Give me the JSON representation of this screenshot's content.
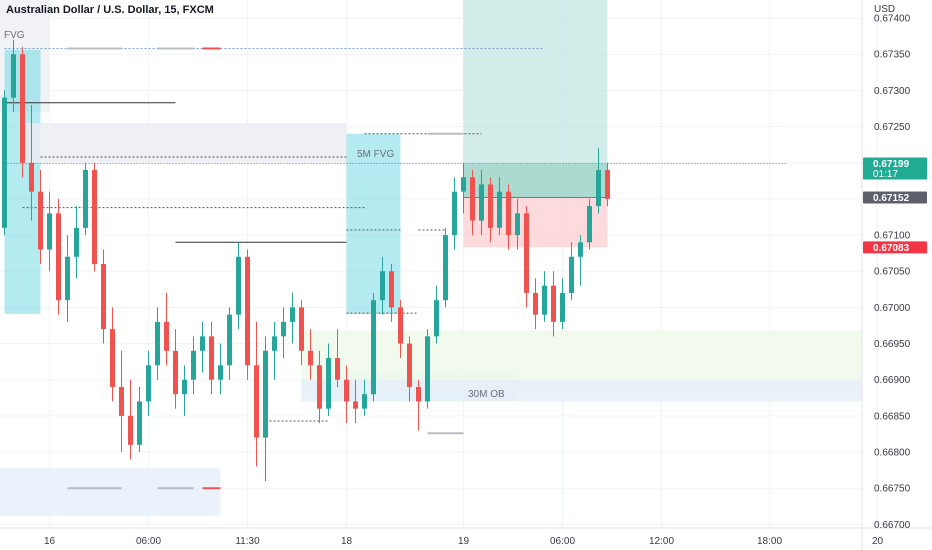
{
  "header": {
    "title": "Australian Dollar / U.S. Dollar, 15, FXCM",
    "currency": "USD"
  },
  "chart_data": {
    "type": "candlestick",
    "symbol": "AUDUSD",
    "timeframe": "15",
    "source": "FXCM",
    "y_range": [
      0.66695,
      0.67425
    ],
    "y_ticks": [
      0.674,
      0.6735,
      0.673,
      0.6725,
      0.672,
      0.6715,
      0.671,
      0.6705,
      0.67,
      0.6695,
      0.669,
      0.6685,
      0.668,
      0.6675,
      0.667
    ],
    "y_tick_labels": [
      "0.67400",
      "0.67350",
      "0.67300",
      "0.67250",
      "0.67200",
      "0.67150",
      "0.67100",
      "0.67050",
      "0.67000",
      "0.66950",
      "0.66900",
      "0.66850",
      "0.66800",
      "0.66750",
      "0.66700"
    ],
    "x_ticks": [
      {
        "label": "16",
        "bar": 5
      },
      {
        "label": "06:00",
        "bar": 16
      },
      {
        "label": "11:30",
        "bar": 27
      },
      {
        "label": "18",
        "bar": 38
      },
      {
        "label": "19",
        "bar": 51
      },
      {
        "label": "06:00",
        "bar": 62
      },
      {
        "label": "12:00",
        "bar": 73
      },
      {
        "label": "18:00",
        "bar": 85
      },
      {
        "label": "20",
        "bar": 97
      }
    ],
    "bar_count_visible": 100,
    "candles": [
      [
        0.6711,
        0.673,
        0.671,
        0.6729
      ],
      [
        0.6729,
        0.6737,
        0.6727,
        0.6735
      ],
      [
        0.6735,
        0.6736,
        0.6718,
        0.672
      ],
      [
        0.672,
        0.6728,
        0.6712,
        0.6716
      ],
      [
        0.6716,
        0.6719,
        0.6706,
        0.6708
      ],
      [
        0.6708,
        0.6716,
        0.6705,
        0.6713
      ],
      [
        0.6713,
        0.6715,
        0.6699,
        0.6701
      ],
      [
        0.6701,
        0.671,
        0.6698,
        0.6707
      ],
      [
        0.6707,
        0.6714,
        0.6704,
        0.6711
      ],
      [
        0.6711,
        0.672,
        0.671,
        0.6719
      ],
      [
        0.6719,
        0.672,
        0.6705,
        0.6706
      ],
      [
        0.6706,
        0.6708,
        0.6695,
        0.6697
      ],
      [
        0.6697,
        0.67,
        0.6687,
        0.6689
      ],
      [
        0.6689,
        0.6694,
        0.668,
        0.6685
      ],
      [
        0.6685,
        0.669,
        0.6679,
        0.6681
      ],
      [
        0.6681,
        0.6689,
        0.668,
        0.6687
      ],
      [
        0.6687,
        0.6694,
        0.6685,
        0.6692
      ],
      [
        0.6692,
        0.67,
        0.669,
        0.6698
      ],
      [
        0.6698,
        0.6702,
        0.6692,
        0.6694
      ],
      [
        0.6694,
        0.6697,
        0.6686,
        0.6688
      ],
      [
        0.6688,
        0.6692,
        0.6685,
        0.669
      ],
      [
        0.669,
        0.6696,
        0.6688,
        0.6694
      ],
      [
        0.6694,
        0.6698,
        0.6691,
        0.6696
      ],
      [
        0.6696,
        0.6698,
        0.6688,
        0.669
      ],
      [
        0.669,
        0.6695,
        0.6688,
        0.6692
      ],
      [
        0.6692,
        0.67,
        0.669,
        0.6699
      ],
      [
        0.6699,
        0.6709,
        0.6697,
        0.6707
      ],
      [
        0.6707,
        0.6708,
        0.669,
        0.6692
      ],
      [
        0.6692,
        0.6698,
        0.6678,
        0.6682
      ],
      [
        0.6682,
        0.6696,
        0.6676,
        0.6694
      ],
      [
        0.6694,
        0.6698,
        0.669,
        0.6696
      ],
      [
        0.6696,
        0.67,
        0.6693,
        0.6698
      ],
      [
        0.6698,
        0.6702,
        0.6695,
        0.67
      ],
      [
        0.67,
        0.6701,
        0.6692,
        0.6694
      ],
      [
        0.6694,
        0.6697,
        0.669,
        0.6692
      ],
      [
        0.6692,
        0.6694,
        0.6684,
        0.6686
      ],
      [
        0.6686,
        0.6695,
        0.6685,
        0.6693
      ],
      [
        0.6693,
        0.6697,
        0.6689,
        0.669
      ],
      [
        0.669,
        0.6692,
        0.6684,
        0.6687
      ],
      [
        0.6687,
        0.669,
        0.6684,
        0.6686
      ],
      [
        0.6686,
        0.669,
        0.6685,
        0.6688
      ],
      [
        0.6688,
        0.6702,
        0.6687,
        0.6701
      ],
      [
        0.6701,
        0.6707,
        0.6699,
        0.6705
      ],
      [
        0.6705,
        0.6706,
        0.6698,
        0.67
      ],
      [
        0.67,
        0.6701,
        0.6693,
        0.6695
      ],
      [
        0.6695,
        0.6696,
        0.6687,
        0.6689
      ],
      [
        0.6689,
        0.669,
        0.6683,
        0.6687
      ],
      [
        0.6687,
        0.6697,
        0.6686,
        0.6696
      ],
      [
        0.6696,
        0.6703,
        0.6695,
        0.6701
      ],
      [
        0.6701,
        0.6711,
        0.67,
        0.671
      ],
      [
        0.671,
        0.6718,
        0.6708,
        0.6716
      ],
      [
        0.6716,
        0.672,
        0.6713,
        0.6718
      ],
      [
        0.6718,
        0.6719,
        0.671,
        0.6712
      ],
      [
        0.6712,
        0.6719,
        0.671,
        0.6717
      ],
      [
        0.6717,
        0.6718,
        0.6709,
        0.6711
      ],
      [
        0.6711,
        0.6718,
        0.671,
        0.6716
      ],
      [
        0.6716,
        0.6717,
        0.6708,
        0.671
      ],
      [
        0.671,
        0.6715,
        0.6708,
        0.6713
      ],
      [
        0.6713,
        0.6714,
        0.67,
        0.6702
      ],
      [
        0.6702,
        0.6704,
        0.6697,
        0.6699
      ],
      [
        0.6699,
        0.6705,
        0.6698,
        0.6703
      ],
      [
        0.6703,
        0.6705,
        0.6696,
        0.6698
      ],
      [
        0.6698,
        0.6704,
        0.6697,
        0.6702
      ],
      [
        0.6702,
        0.6709,
        0.6701,
        0.6707
      ],
      [
        0.6707,
        0.671,
        0.6703,
        0.6709
      ],
      [
        0.6709,
        0.6715,
        0.6708,
        0.6714
      ],
      [
        0.6714,
        0.6722,
        0.6713,
        0.6719
      ],
      [
        0.6719,
        0.672,
        0.6714,
        0.6715
      ]
    ],
    "y_axis_badges": [
      {
        "value": 0.67199,
        "label": "0.67199",
        "sub": "01:17",
        "color": "#22ab94"
      },
      {
        "value": 0.67152,
        "label": "0.67152",
        "color": "#5d606b"
      },
      {
        "value": 0.67083,
        "label": "0.67083",
        "color": "#f23645"
      }
    ],
    "zones": [
      {
        "name": "FVG",
        "label": "FVG",
        "bar_from": -1,
        "bar_to": 5,
        "y_from": 0.6727,
        "y_to": 0.6743,
        "fill": "#eef0f4"
      },
      {
        "name": "blue-fvg-left",
        "bar_from": 0,
        "bar_to": 4,
        "y_from": 0.66991,
        "y_to": 0.67356,
        "fill": "#74dbe3"
      },
      {
        "name": "5M FVG",
        "label": "5M FVG",
        "bar_from": 2,
        "bar_to": 38,
        "y_from": 0.672,
        "y_to": 0.67255,
        "fill": "#ecedf1"
      },
      {
        "name": "blue-fvg-mid",
        "bar_from": 38,
        "bar_to": 44,
        "y_from": 0.66991,
        "y_to": 0.6724,
        "fill": "#74dbe3"
      },
      {
        "name": "30M OB",
        "label": "30M OB",
        "bar_from": 35,
        "bar_to": 57,
        "y_from": 0.6687,
        "y_to": 0.66912,
        "fill": "#e8f1fc"
      },
      {
        "name": "green-zone",
        "bar_from": 33,
        "bar_to": 99,
        "y_from": 0.66885,
        "y_to": 0.66968,
        "fill": "#eef9ea"
      },
      {
        "name": "blue-zone-right",
        "bar_from": 33,
        "bar_to": 99,
        "y_from": 0.6687,
        "y_to": 0.669,
        "fill": "#e5eef8"
      },
      {
        "name": "blue-zone-bottom",
        "bar_from": -1,
        "bar_to": 24,
        "y_from": 0.66712,
        "y_to": 0.66778,
        "fill": "#e7f0fc"
      }
    ],
    "position": {
      "entry": 0.67152,
      "stop": 0.67083,
      "target": 0.6743,
      "bar_from": 51,
      "bar_to": 67
    },
    "levels": [
      {
        "name": "level-1",
        "value": 0.67358,
        "bar_from": 0,
        "bar_to": 60,
        "dashed": true,
        "color": "#7aa0d6"
      },
      {
        "name": "level-2",
        "value": 0.67283,
        "bar_from": 0,
        "bar_to": 19,
        "dashed": false,
        "color": "#333333"
      },
      {
        "name": "level-3",
        "value": 0.6709,
        "bar_from": 19,
        "bar_to": 38,
        "dashed": false,
        "color": "#333333"
      },
      {
        "name": "level-4",
        "value": 0.67199,
        "bar_from": 0,
        "bar_to": 87,
        "dashed": true,
        "color": "#26a69a",
        "dotted": true
      },
      {
        "name": "level-5",
        "value": 0.6724,
        "bar_from": 40,
        "bar_to": 53,
        "dashed": true,
        "color": "#555555"
      },
      {
        "name": "level-6",
        "value": 0.67208,
        "bar_from": 4,
        "bar_to": 38,
        "dashed": true,
        "color": "#555555"
      },
      {
        "name": "level-7",
        "value": 0.67138,
        "bar_from": 2,
        "bar_to": 40,
        "dashed": true,
        "color": "#555555"
      },
      {
        "name": "level-8",
        "value": 0.67107,
        "bar_from": 38,
        "bar_to": 44,
        "dashed": true,
        "color": "#555555"
      },
      {
        "name": "level-9",
        "value": 0.67107,
        "bar_from": 46,
        "bar_to": 49,
        "dashed": true,
        "color": "#555555"
      },
      {
        "name": "level-10",
        "value": 0.66992,
        "bar_from": 38,
        "bar_to": 46,
        "dashed": true,
        "color": "#555555"
      },
      {
        "name": "level-11",
        "value": 0.66843,
        "bar_from": 29,
        "bar_to": 36,
        "dashed": true,
        "color": "#555555"
      }
    ],
    "marks": [
      {
        "name": "mark-1",
        "value": 0.67358,
        "bar_from": 7,
        "bar_to": 13,
        "color": "#b8bcc4"
      },
      {
        "name": "mark-2",
        "value": 0.67358,
        "bar_from": 17,
        "bar_to": 21,
        "color": "#b8bcc4"
      },
      {
        "name": "mark-3",
        "value": 0.67358,
        "bar_from": 22,
        "bar_to": 24,
        "color": "#ef5350"
      },
      {
        "name": "mark-4",
        "value": 0.6675,
        "bar_from": 7,
        "bar_to": 13,
        "color": "#b8bcc4"
      },
      {
        "name": "mark-5",
        "value": 0.6675,
        "bar_from": 17,
        "bar_to": 21,
        "color": "#b8bcc4"
      },
      {
        "name": "mark-6",
        "value": 0.6675,
        "bar_from": 22,
        "bar_to": 24,
        "color": "#ef5350"
      },
      {
        "name": "mark-7",
        "value": 0.6724,
        "bar_from": 47,
        "bar_to": 51,
        "color": "#b8bcc4"
      },
      {
        "name": "mark-8",
        "value": 0.66826,
        "bar_from": 47,
        "bar_to": 51,
        "color": "#b8bcc4"
      }
    ],
    "colors": {
      "up": "#26a69a",
      "down": "#ef5350"
    }
  }
}
